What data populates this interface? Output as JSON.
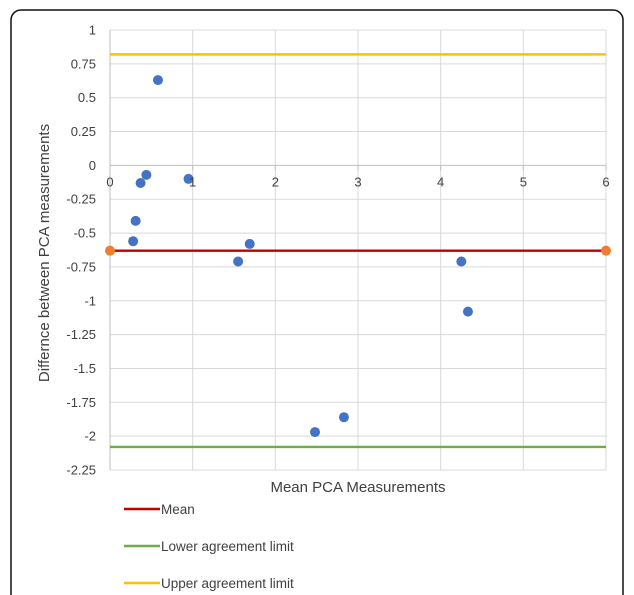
{
  "chart_data": {
    "type": "scatter",
    "xlabel": "Mean PCA Measurements",
    "ylabel": "Differnce between PCA measurements",
    "xlim": [
      0,
      6
    ],
    "ylim": [
      -2.25,
      1
    ],
    "x_ticks": [
      "0",
      "1",
      "2",
      "3",
      "4",
      "5",
      "6"
    ],
    "y_ticks": [
      "1",
      "0.75",
      "0.5",
      "0.25",
      "0",
      "-0.25",
      "-0.5",
      "-0.75",
      "-1",
      "-1.25",
      "-1.5",
      "-1.75",
      "-2",
      "-2.25"
    ],
    "grid": true,
    "legend_position": "bottom",
    "series": [
      {
        "type": "scatter",
        "color": "#4472C4",
        "points": [
          {
            "x": 0.58,
            "y": 0.63
          },
          {
            "x": 0.44,
            "y": -0.07
          },
          {
            "x": 0.37,
            "y": -0.13
          },
          {
            "x": 0.95,
            "y": -0.1
          },
          {
            "x": 0.31,
            "y": -0.41
          },
          {
            "x": 0.28,
            "y": -0.56
          },
          {
            "x": 1.55,
            "y": -0.71
          },
          {
            "x": 1.69,
            "y": -0.58
          },
          {
            "x": 2.48,
            "y": -1.97
          },
          {
            "x": 2.83,
            "y": -1.86
          },
          {
            "x": 4.25,
            "y": -0.71
          },
          {
            "x": 4.33,
            "y": -1.08
          }
        ]
      },
      {
        "name": "Mean",
        "type": "line",
        "color": "#C00000",
        "value": -0.63,
        "endpoint_color": "#ED7D31"
      },
      {
        "name": "Lower agreement limit",
        "type": "line",
        "color": "#70AD47",
        "value": -2.08
      },
      {
        "name": "Upper agreement limit",
        "type": "line",
        "color": "#FFC000",
        "value": 0.82
      }
    ]
  }
}
